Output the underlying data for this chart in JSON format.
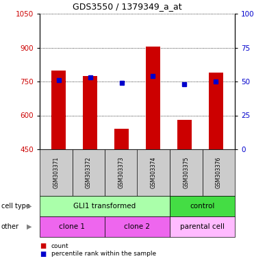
{
  "title": "GDS3550 / 1379349_a_at",
  "samples": [
    "GSM303371",
    "GSM303372",
    "GSM303373",
    "GSM303374",
    "GSM303375",
    "GSM303376"
  ],
  "counts": [
    800,
    775,
    540,
    905,
    580,
    790
  ],
  "percentiles": [
    51.0,
    53.0,
    49.0,
    54.0,
    48.0,
    50.0
  ],
  "ylim_left": [
    450,
    1050
  ],
  "ylim_right": [
    0,
    100
  ],
  "yticks_left": [
    450,
    600,
    750,
    900,
    1050
  ],
  "yticks_right": [
    0,
    25,
    50,
    75,
    100
  ],
  "bar_color": "#cc0000",
  "dot_color": "#0000cc",
  "bar_bottom": 450,
  "cell_type_groups": [
    {
      "label": "GLI1 transformed",
      "start": 0,
      "end": 3,
      "color": "#aaffaa"
    },
    {
      "label": "control",
      "start": 4,
      "end": 5,
      "color": "#44dd44"
    }
  ],
  "other_groups": [
    {
      "label": "clone 1",
      "start": 0,
      "end": 1,
      "color": "#ee66ee"
    },
    {
      "label": "clone 2",
      "start": 2,
      "end": 3,
      "color": "#ee66ee"
    },
    {
      "label": "parental cell",
      "start": 4,
      "end": 5,
      "color": "#ffbbff"
    }
  ],
  "cell_type_label": "cell type",
  "other_label": "other",
  "legend_count_label": "count",
  "legend_percentile_label": "percentile rank within the sample",
  "tick_label_color_left": "#cc0000",
  "tick_label_color_right": "#0000cc",
  "sample_bg_color": "#cccccc",
  "fig_width": 3.71,
  "fig_height": 3.84,
  "dpi": 100
}
